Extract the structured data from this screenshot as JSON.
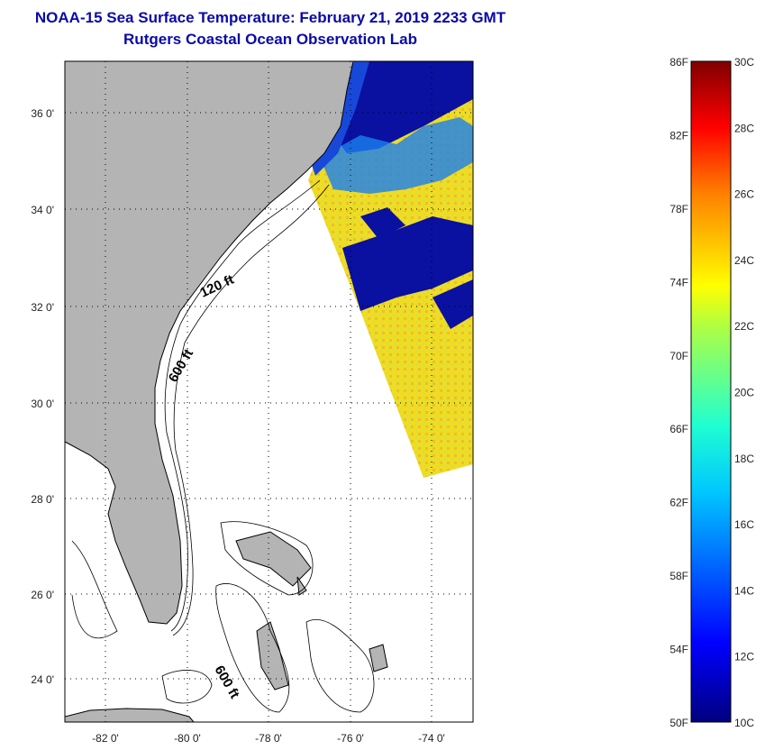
{
  "title": "NOAA-15 Sea Surface Temperature:  February 21, 2019 2233 GMT",
  "subtitle": "Rutgers Coastal Ocean Observation Lab",
  "map": {
    "lon_labels": [
      "-82 0'",
      "-80 0'",
      "-78 0'",
      "-76 0'",
      "-74 0'"
    ],
    "lat_labels": [
      "36 0'",
      "34 0'",
      "32 0'",
      "30 0'",
      "28 0'",
      "26 0'",
      "24 0'"
    ],
    "contour_labels": [
      "120 ft",
      "600 ft",
      "600 ft"
    ],
    "colors": {
      "land": "#b4b4b4",
      "warm": "#f2e21a",
      "cold": "#0a10a0"
    }
  },
  "colorbar": {
    "fahrenheit": [
      "86F",
      "82F",
      "78F",
      "74F",
      "70F",
      "66F",
      "62F",
      "58F",
      "54F",
      "50F"
    ],
    "celsius": [
      "30C",
      "28C",
      "26C",
      "24C",
      "22C",
      "20C",
      "18C",
      "16C",
      "14C",
      "12C",
      "10C"
    ]
  }
}
